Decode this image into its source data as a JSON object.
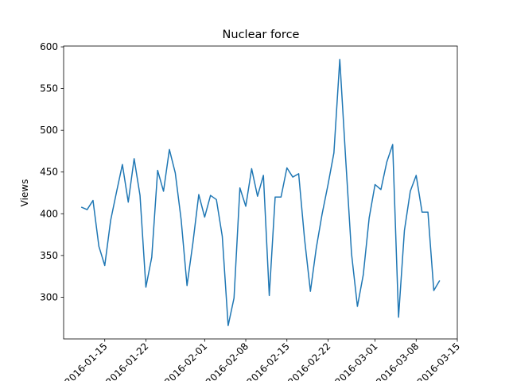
{
  "chart_data": {
    "type": "line",
    "title": "Nuclear force",
    "ylabel": "Views",
    "x": [
      "2016-01-11",
      "2016-01-12",
      "2016-01-13",
      "2016-01-14",
      "2016-01-15",
      "2016-01-16",
      "2016-01-17",
      "2016-01-18",
      "2016-01-19",
      "2016-01-20",
      "2016-01-21",
      "2016-01-22",
      "2016-01-23",
      "2016-01-24",
      "2016-01-25",
      "2016-01-26",
      "2016-01-27",
      "2016-01-28",
      "2016-01-29",
      "2016-01-30",
      "2016-01-31",
      "2016-02-01",
      "2016-02-02",
      "2016-02-03",
      "2016-02-04",
      "2016-02-05",
      "2016-02-06",
      "2016-02-07",
      "2016-02-08",
      "2016-02-09",
      "2016-02-10",
      "2016-02-11",
      "2016-02-12",
      "2016-02-13",
      "2016-02-14",
      "2016-02-15",
      "2016-02-16",
      "2016-02-17",
      "2016-02-18",
      "2016-02-19",
      "2016-02-20",
      "2016-02-21",
      "2016-02-22",
      "2016-02-23",
      "2016-02-24",
      "2016-02-25",
      "2016-02-26",
      "2016-02-27",
      "2016-02-28",
      "2016-02-29",
      "2016-03-01",
      "2016-03-02",
      "2016-03-03",
      "2016-03-04",
      "2016-03-05",
      "2016-03-06",
      "2016-03-07",
      "2016-03-08",
      "2016-03-09",
      "2016-03-10",
      "2016-03-11",
      "2016-03-12"
    ],
    "series": [
      {
        "name": "Views",
        "color": "#1f77b4",
        "values": [
          408,
          405,
          416,
          361,
          338,
          392,
          426,
          459,
          414,
          466,
          422,
          312,
          348,
          452,
          427,
          477,
          449,
          393,
          314,
          365,
          423,
          396,
          422,
          417,
          373,
          266,
          299,
          431,
          409,
          454,
          421,
          446,
          302,
          420,
          420,
          455,
          444,
          448,
          370,
          307,
          359,
          400,
          435,
          473,
          585,
          466,
          352,
          289,
          327,
          395,
          435,
          429,
          462,
          483,
          276,
          380,
          427,
          446,
          402,
          402,
          308,
          320
        ]
      }
    ],
    "xlim": [
      "2016-01-08",
      "2016-03-15"
    ],
    "xticks": [
      "2016-01-15",
      "2016-01-22",
      "2016-02-01",
      "2016-02-08",
      "2016-02-15",
      "2016-02-22",
      "2016-03-01",
      "2016-03-08",
      "2016-03-15"
    ],
    "ylim": [
      250,
      601
    ],
    "yticks": [
      300,
      350,
      400,
      450,
      500,
      550,
      600
    ]
  }
}
